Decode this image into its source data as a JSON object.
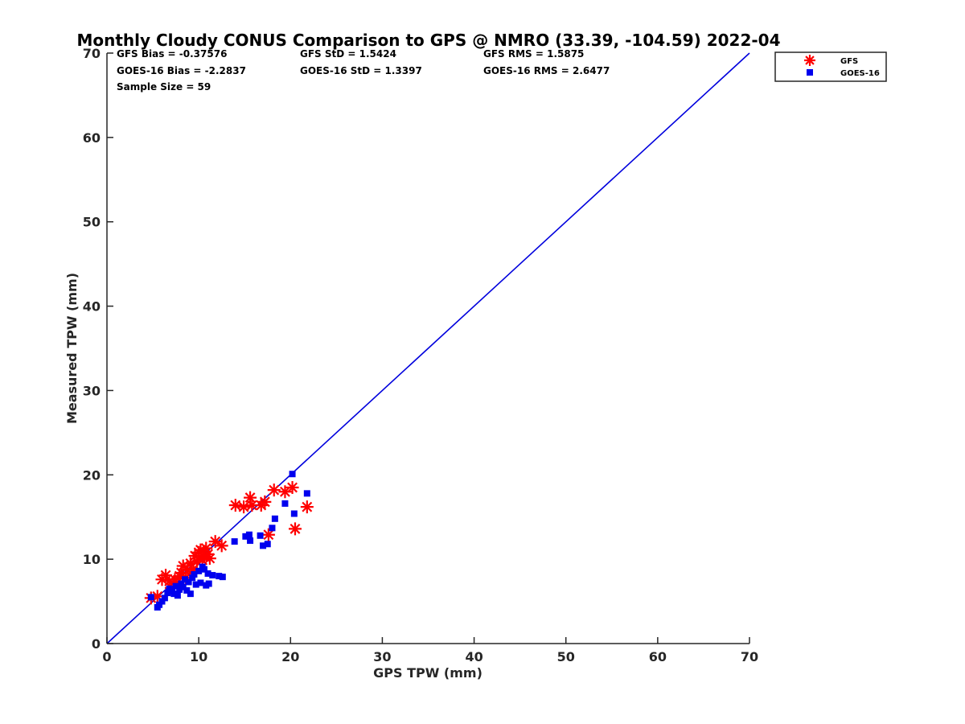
{
  "chart_data": {
    "type": "scatter",
    "title": "Monthly Cloudy CONUS Comparison to GPS @ NMRO (33.39, -104.59) 2022-04",
    "xlabel": "GPS TPW (mm)",
    "ylabel": "Measured TPW (mm)",
    "xlim": [
      0,
      70
    ],
    "ylim": [
      0,
      70
    ],
    "xticks": [
      0,
      10,
      20,
      30,
      40,
      50,
      60,
      70
    ],
    "yticks": [
      0,
      10,
      20,
      30,
      40,
      50,
      60,
      70
    ],
    "grid": false,
    "legend_position": "top-right-outside",
    "stats": {
      "gfs_bias": "GFS Bias = -0.37576",
      "gfs_std": "GFS StD = 1.5424",
      "gfs_rms": "GFS RMS = 1.5875",
      "goes_bias": "GOES-16 Bias = -2.2837",
      "goes_std": "GOES-16 StD = 1.3397",
      "goes_rms": "GOES-16 RMS = 2.6477",
      "sample_size": "Sample Size = 59"
    },
    "reference_line": {
      "name": "1:1",
      "x": [
        0,
        70
      ],
      "y": [
        0,
        70
      ],
      "color": "#0000dd"
    },
    "series": [
      {
        "name": "GFS",
        "marker": "asterisk",
        "color": "#ff0000",
        "points": [
          [
            4.8,
            5.4
          ],
          [
            5.5,
            5.6
          ],
          [
            6.0,
            7.6
          ],
          [
            6.4,
            8.1
          ],
          [
            6.8,
            7.4
          ],
          [
            7.0,
            6.6
          ],
          [
            7.4,
            7.6
          ],
          [
            7.6,
            7.2
          ],
          [
            7.9,
            8.0
          ],
          [
            8.1,
            8.4
          ],
          [
            8.3,
            9.2
          ],
          [
            8.6,
            7.8
          ],
          [
            8.8,
            8.7
          ],
          [
            9.1,
            9.5
          ],
          [
            9.4,
            8.8
          ],
          [
            9.6,
            10.4
          ],
          [
            9.8,
            9.7
          ],
          [
            10.0,
            10.8
          ],
          [
            10.2,
            11.1
          ],
          [
            10.4,
            9.9
          ],
          [
            10.6,
            10.3
          ],
          [
            10.8,
            11.3
          ],
          [
            11.0,
            10.6
          ],
          [
            11.2,
            10.1
          ],
          [
            11.8,
            12.1
          ],
          [
            12.5,
            11.6
          ],
          [
            14.0,
            16.4
          ],
          [
            14.9,
            16.2
          ],
          [
            15.6,
            17.3
          ],
          [
            15.8,
            16.4
          ],
          [
            16.8,
            16.4
          ],
          [
            17.2,
            16.8
          ],
          [
            17.6,
            12.9
          ],
          [
            18.2,
            18.2
          ],
          [
            19.4,
            18.0
          ],
          [
            20.2,
            18.5
          ],
          [
            20.5,
            13.6
          ],
          [
            21.8,
            16.2
          ]
        ]
      },
      {
        "name": "GOES-16",
        "marker": "square",
        "color": "#0000ee",
        "points": [
          [
            4.8,
            5.5
          ],
          [
            5.5,
            4.3
          ],
          [
            5.7,
            4.6
          ],
          [
            6.0,
            5.0
          ],
          [
            6.3,
            5.4
          ],
          [
            6.6,
            6.0
          ],
          [
            6.8,
            6.5
          ],
          [
            7.1,
            6.2
          ],
          [
            7.3,
            5.9
          ],
          [
            7.5,
            6.8
          ],
          [
            7.7,
            5.7
          ],
          [
            7.9,
            6.4
          ],
          [
            8.1,
            7.1
          ],
          [
            8.3,
            6.7
          ],
          [
            8.5,
            7.6
          ],
          [
            8.7,
            6.3
          ],
          [
            8.9,
            7.3
          ],
          [
            9.1,
            5.9
          ],
          [
            9.3,
            7.8
          ],
          [
            9.5,
            8.2
          ],
          [
            9.7,
            7.0
          ],
          [
            10.0,
            8.6
          ],
          [
            10.2,
            7.2
          ],
          [
            10.4,
            9.1
          ],
          [
            10.6,
            8.8
          ],
          [
            10.8,
            6.9
          ],
          [
            11.0,
            8.3
          ],
          [
            11.1,
            7.1
          ],
          [
            11.5,
            8.1
          ],
          [
            12.2,
            8.0
          ],
          [
            12.6,
            7.9
          ],
          [
            13.9,
            12.1
          ],
          [
            15.1,
            12.7
          ],
          [
            15.5,
            12.9
          ],
          [
            15.6,
            12.2
          ],
          [
            16.7,
            12.8
          ],
          [
            17.0,
            11.6
          ],
          [
            17.5,
            11.8
          ],
          [
            18.0,
            13.7
          ],
          [
            18.3,
            14.8
          ],
          [
            19.4,
            16.6
          ],
          [
            20.2,
            20.1
          ],
          [
            20.4,
            15.4
          ],
          [
            21.8,
            17.8
          ]
        ]
      }
    ]
  }
}
